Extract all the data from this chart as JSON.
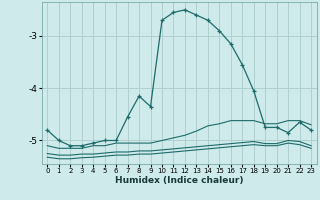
{
  "xlabel": "Humidex (Indice chaleur)",
  "bg_color": "#ceeaea",
  "grid_color": "#b0d0d0",
  "line_color": "#1e6b6b",
  "xlim": [
    -0.5,
    23.5
  ],
  "ylim": [
    -5.45,
    -2.35
  ],
  "yticks": [
    -5,
    -4,
    -3
  ],
  "xticks": [
    0,
    1,
    2,
    3,
    4,
    5,
    6,
    7,
    8,
    9,
    10,
    11,
    12,
    13,
    14,
    15,
    16,
    17,
    18,
    19,
    20,
    21,
    22,
    23
  ],
  "series": [
    {
      "x": [
        0,
        1,
        2,
        3,
        4,
        5,
        6,
        7,
        8,
        9,
        10,
        11,
        12,
        13,
        14,
        15,
        16,
        17,
        18,
        19,
        20,
        21,
        22,
        23
      ],
      "y": [
        -4.8,
        -5.0,
        -5.1,
        -5.1,
        -5.05,
        -5.0,
        -5.0,
        -4.55,
        -4.15,
        -4.35,
        -2.7,
        -2.55,
        -2.5,
        -2.6,
        -2.7,
        -2.9,
        -3.15,
        -3.55,
        -4.05,
        -4.75,
        -4.75,
        -4.85,
        -4.65,
        -4.8
      ],
      "marker": "+"
    },
    {
      "x": [
        0,
        1,
        2,
        3,
        4,
        5,
        6,
        7,
        8,
        9,
        10,
        11,
        12,
        13,
        14,
        15,
        16,
        17,
        18,
        19,
        20,
        21,
        22,
        23
      ],
      "y": [
        -5.1,
        -5.15,
        -5.15,
        -5.15,
        -5.1,
        -5.1,
        -5.05,
        -5.05,
        -5.05,
        -5.05,
        -5.0,
        -4.95,
        -4.9,
        -4.82,
        -4.72,
        -4.68,
        -4.62,
        -4.62,
        -4.62,
        -4.68,
        -4.68,
        -4.62,
        -4.62,
        -4.7
      ],
      "marker": null
    },
    {
      "x": [
        0,
        1,
        2,
        3,
        4,
        5,
        6,
        7,
        8,
        9,
        10,
        11,
        12,
        13,
        14,
        15,
        16,
        17,
        18,
        19,
        20,
        21,
        22,
        23
      ],
      "y": [
        -5.25,
        -5.28,
        -5.28,
        -5.26,
        -5.26,
        -5.24,
        -5.22,
        -5.22,
        -5.2,
        -5.2,
        -5.18,
        -5.16,
        -5.14,
        -5.12,
        -5.1,
        -5.08,
        -5.06,
        -5.04,
        -5.02,
        -5.06,
        -5.06,
        -5.0,
        -5.02,
        -5.1
      ],
      "marker": null
    },
    {
      "x": [
        0,
        1,
        2,
        3,
        4,
        5,
        6,
        7,
        8,
        9,
        10,
        11,
        12,
        13,
        14,
        15,
        16,
        17,
        18,
        19,
        20,
        21,
        22,
        23
      ],
      "y": [
        -5.32,
        -5.35,
        -5.35,
        -5.33,
        -5.32,
        -5.3,
        -5.28,
        -5.28,
        -5.26,
        -5.26,
        -5.24,
        -5.22,
        -5.2,
        -5.18,
        -5.16,
        -5.14,
        -5.12,
        -5.1,
        -5.08,
        -5.1,
        -5.1,
        -5.05,
        -5.08,
        -5.15
      ],
      "marker": null
    }
  ]
}
